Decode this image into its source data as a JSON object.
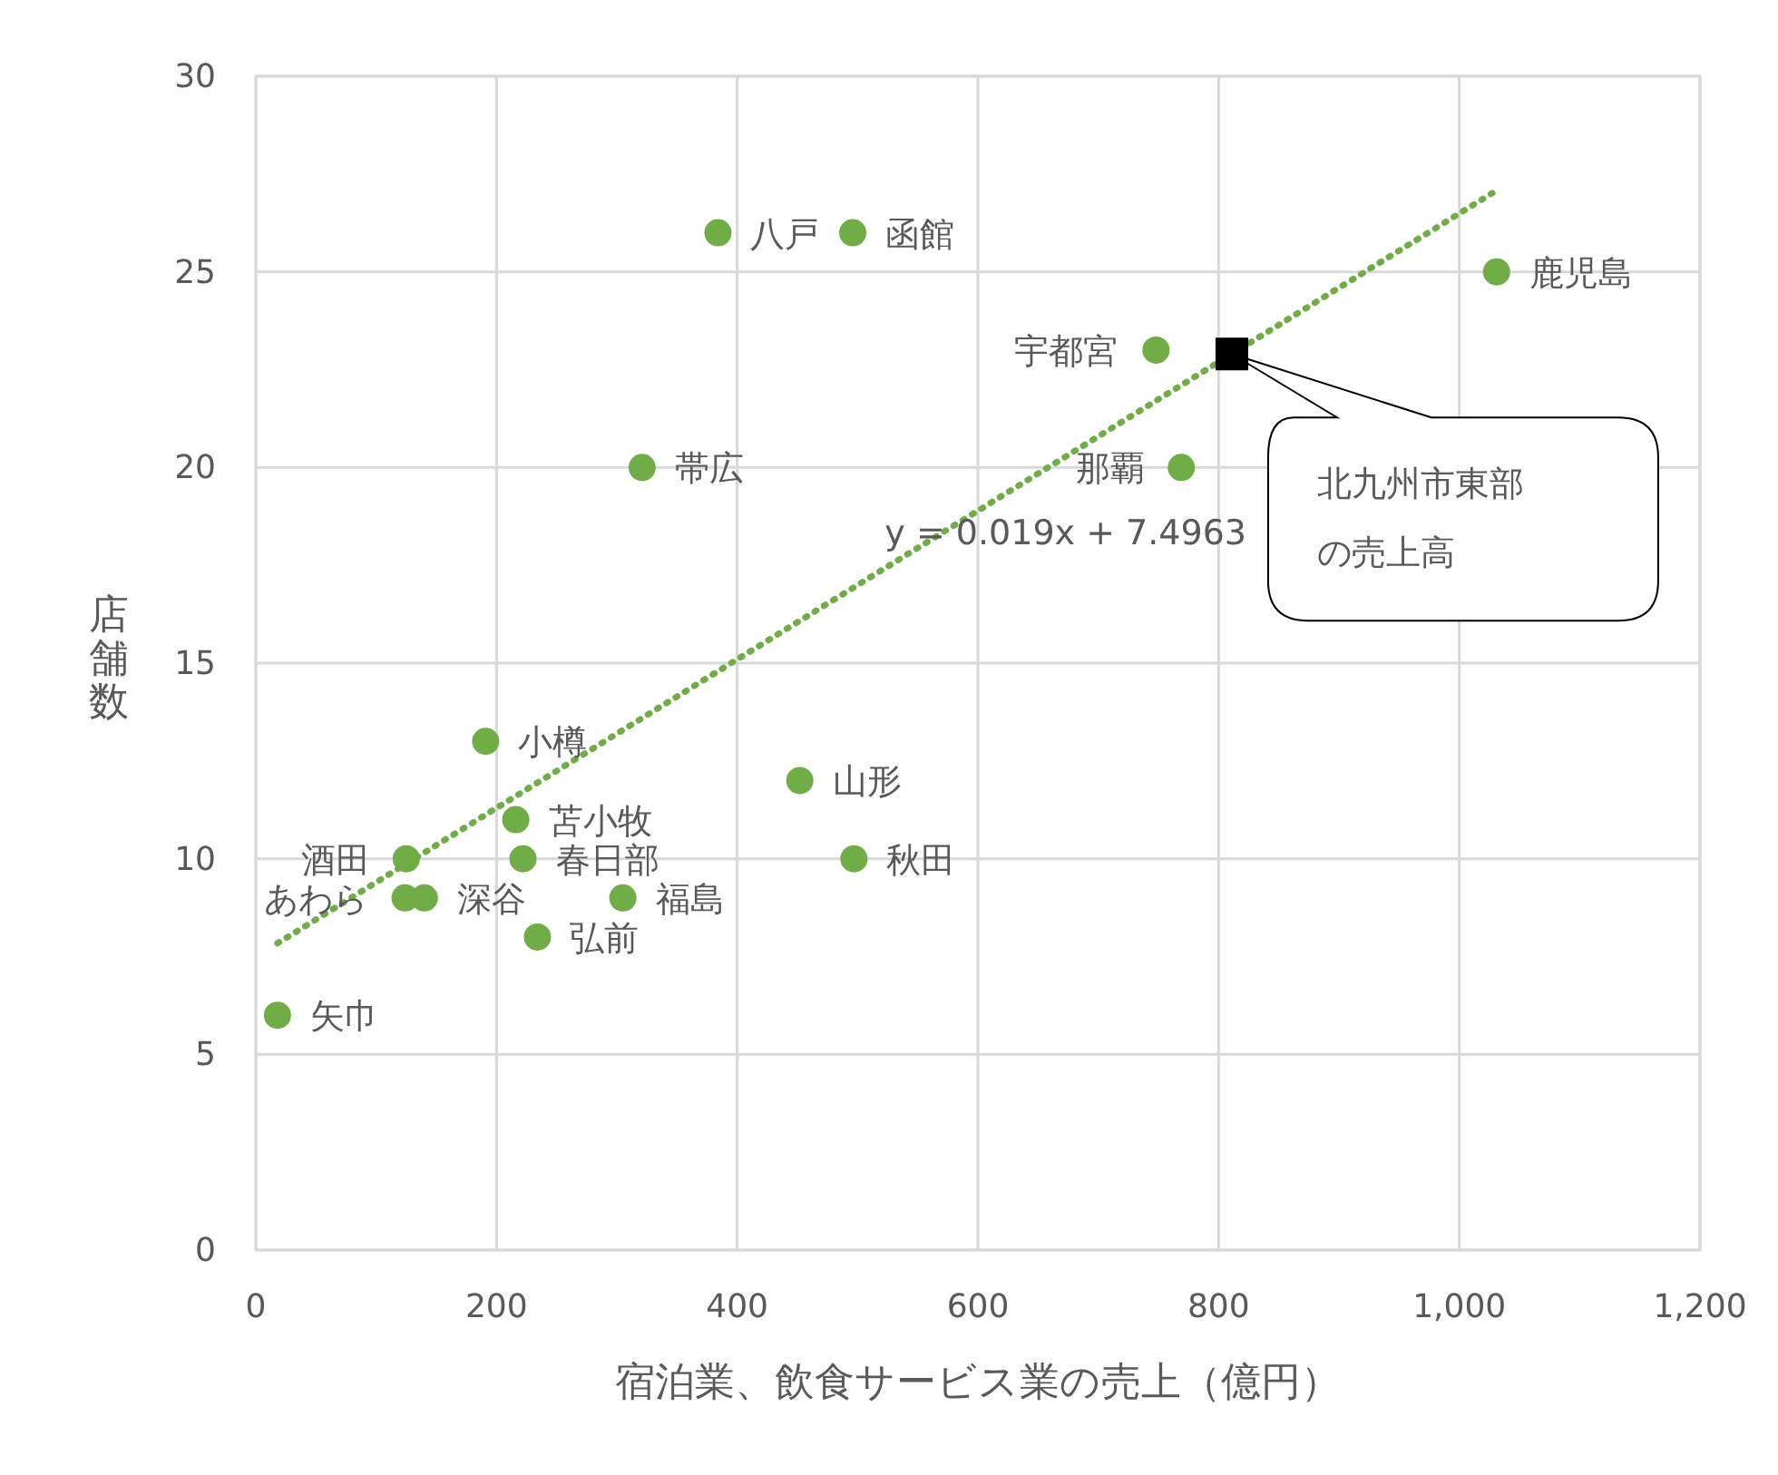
{
  "chart_data": {
    "type": "scatter",
    "xlabel": "宿泊業、飲食サービス業の売上（億円）",
    "ylabel": "店舗数",
    "xlim": [
      0,
      1200
    ],
    "xticks": [
      0,
      200,
      400,
      600,
      800,
      {
        "value": 1000,
        "label": "1,000"
      },
      {
        "value": 1200,
        "label": "1,200"
      }
    ],
    "ylim": [
      0,
      30
    ],
    "yticks": [
      0,
      5,
      10,
      15,
      20,
      25,
      30
    ],
    "grid": true,
    "series": [
      {
        "color": "#70ad47",
        "marker": "circle",
        "x": [
          18,
          125,
          124,
          140,
          191,
          216,
          222,
          234,
          305,
          321,
          384,
          452,
          496,
          497,
          748,
          769,
          1031
        ],
        "values": [
          6,
          10,
          9,
          9,
          13,
          11,
          10,
          8,
          9,
          20,
          26,
          12,
          26,
          10,
          23,
          20,
          25
        ]
      },
      {
        "color": "#000000",
        "marker": "square",
        "x": [
          811
        ],
        "values": [
          22.9
        ]
      },
      {
        "type": "line",
        "color": "#70ad47",
        "line_style": "dotted",
        "marker": "none",
        "x": [
          18,
          1031
        ],
        "values": [
          7.84,
          27.08
        ]
      }
    ],
    "annotations": [
      {
        "text": "矢巾",
        "x": 18,
        "y": 6
      },
      {
        "text": "酒田",
        "x": 125,
        "y": 10
      },
      {
        "text": "あわら",
        "x": 124,
        "y": 9
      },
      {
        "text": "深谷",
        "x": 140,
        "y": 9
      },
      {
        "text": "小樽",
        "x": 191,
        "y": 13
      },
      {
        "text": "苫小牧",
        "x": 216,
        "y": 11
      },
      {
        "text": "春日部",
        "x": 222,
        "y": 10
      },
      {
        "text": "弘前",
        "x": 234,
        "y": 8
      },
      {
        "text": "福島",
        "x": 305,
        "y": 9
      },
      {
        "text": "帯広",
        "x": 321,
        "y": 20
      },
      {
        "text": "八戸",
        "x": 384,
        "y": 26
      },
      {
        "text": "山形",
        "x": 452,
        "y": 12
      },
      {
        "text": "函館",
        "x": 496,
        "y": 26
      },
      {
        "text": "秋田",
        "x": 497,
        "y": 10
      },
      {
        "text": "宇都宮",
        "x": 748,
        "y": 23
      },
      {
        "text": "那覇",
        "x": 769,
        "y": 20
      },
      {
        "text": "鹿児島",
        "x": 1031,
        "y": 25
      },
      {
        "text": "y = 0.019x + 7.4963",
        "x": 650,
        "y": 19.85
      },
      "北九州市東部の売上高"
    ]
  }
}
